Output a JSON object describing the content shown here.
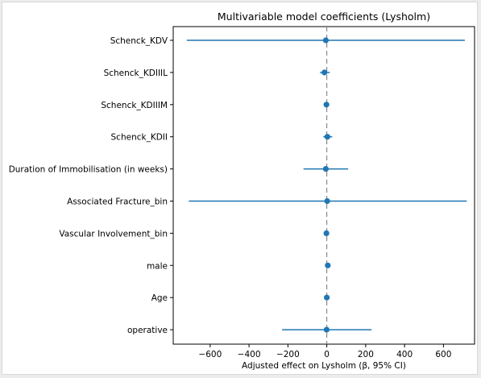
{
  "chart_data": {
    "type": "scatter",
    "title": "Multivariable model coefficients (Lysholm)",
    "xlabel": "Adjusted effect on Lysholm (β, 95% CI)",
    "ylabel": "",
    "xlim": [
      -790,
      760
    ],
    "xticks": [
      -600,
      -400,
      -200,
      0,
      200,
      400,
      600
    ],
    "xtick_labels": [
      "−600",
      "−400",
      "−200",
      "0",
      "200",
      "400",
      "600"
    ],
    "reference_line": 0,
    "grid": false,
    "series_color": "#1f77b4",
    "categories": [
      "Schenck_KDV",
      "Schenck_KDIIIL",
      "Schenck_KDIIIM",
      "Schenck_KDII",
      "Duration of Immobilisation (in weeks)",
      "Associated Fracture_bin",
      "Vascular Involvement_bin",
      "male",
      "Age",
      "operative"
    ],
    "estimates": [
      -5,
      -12,
      -2,
      3,
      -5,
      2,
      -2,
      5,
      0,
      -1
    ],
    "ci_lower": [
      -720,
      -35,
      -12,
      -18,
      -120,
      -710,
      -10,
      -2,
      -4,
      -230
    ],
    "ci_upper": [
      710,
      15,
      8,
      28,
      110,
      720,
      6,
      12,
      4,
      230
    ]
  }
}
